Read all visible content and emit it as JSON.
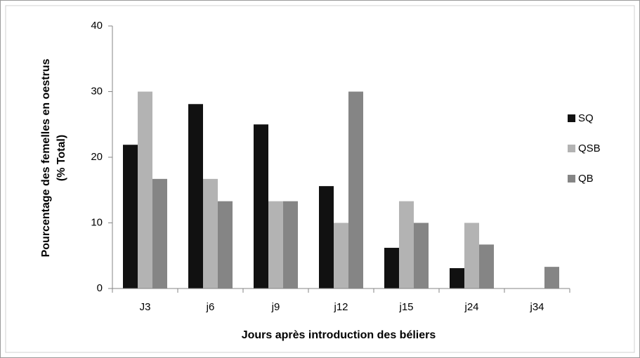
{
  "chart_data": {
    "type": "bar",
    "ylabel": [
      "Pourcentage des femelles en oestrus",
      "(% Total)"
    ],
    "xlabel": "Jours après introduction des béliers",
    "categories": [
      "J3",
      "j6",
      "j9",
      "j12",
      "j15",
      "j24",
      "j34"
    ],
    "series": [
      {
        "name": "SQ",
        "color": "#111111",
        "values": [
          21.9,
          28.1,
          25,
          15.6,
          6.2,
          3.1,
          0
        ]
      },
      {
        "name": "QSB",
        "color": "#b3b3b3",
        "values": [
          30,
          16.7,
          13.3,
          10,
          13.3,
          10,
          0
        ]
      },
      {
        "name": "QB",
        "color": "#858585",
        "values": [
          16.7,
          13.3,
          13.3,
          30,
          10,
          6.7,
          3.3
        ]
      }
    ],
    "ylim": [
      0,
      40
    ],
    "yticks": [
      0,
      10,
      20,
      30,
      40
    ],
    "grid": false,
    "legend": "right"
  }
}
